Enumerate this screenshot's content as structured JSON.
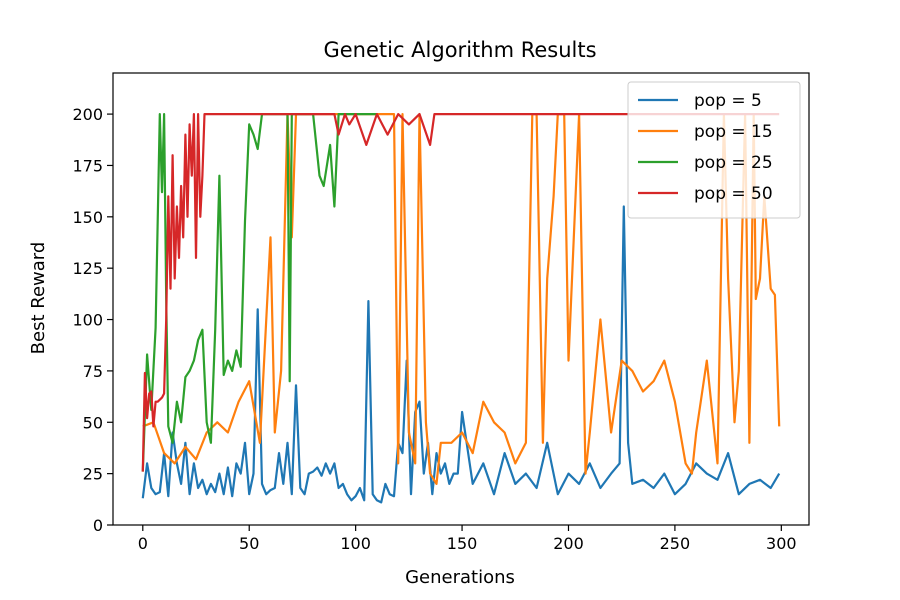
{
  "chart_data": {
    "type": "line",
    "title": "Genetic Algorithm Results",
    "xlabel": "Generations",
    "ylabel": "Best Reward",
    "xlim": [
      -14,
      313
    ],
    "ylim": [
      0,
      220
    ],
    "xticks": [
      0,
      50,
      100,
      150,
      200,
      250,
      300
    ],
    "yticks": [
      0,
      25,
      50,
      75,
      100,
      125,
      150,
      175,
      200
    ],
    "grid": false,
    "legend_position": "top-right",
    "series": [
      {
        "name": "pop = 5",
        "color": "#1f77b4",
        "x": [
          0,
          2,
          4,
          6,
          8,
          10,
          12,
          14,
          16,
          18,
          20,
          22,
          24,
          26,
          28,
          30,
          32,
          34,
          36,
          38,
          40,
          42,
          44,
          46,
          48,
          50,
          52,
          54,
          56,
          58,
          60,
          62,
          64,
          66,
          68,
          70,
          72,
          74,
          76,
          78,
          80,
          82,
          84,
          86,
          88,
          90,
          92,
          94,
          96,
          98,
          100,
          102,
          104,
          106,
          108,
          110,
          112,
          114,
          116,
          118,
          120,
          122,
          124,
          126,
          128,
          130,
          132,
          134,
          136,
          138,
          140,
          142,
          144,
          146,
          148,
          150,
          155,
          160,
          165,
          170,
          175,
          180,
          185,
          190,
          195,
          200,
          205,
          210,
          215,
          220,
          224,
          226,
          228,
          230,
          235,
          240,
          245,
          250,
          255,
          260,
          265,
          270,
          275,
          280,
          285,
          290,
          295,
          299
        ],
        "y": [
          13,
          30,
          18,
          15,
          16,
          35,
          14,
          45,
          30,
          20,
          40,
          15,
          30,
          18,
          22,
          15,
          20,
          16,
          25,
          15,
          28,
          14,
          30,
          25,
          40,
          15,
          25,
          105,
          20,
          15,
          17,
          18,
          35,
          20,
          40,
          15,
          68,
          18,
          15,
          25,
          26,
          28,
          24,
          30,
          25,
          30,
          18,
          20,
          15,
          12,
          14,
          18,
          12,
          109,
          15,
          12,
          11,
          20,
          15,
          14,
          40,
          35,
          80,
          15,
          55,
          60,
          25,
          40,
          15,
          35,
          25,
          30,
          20,
          25,
          25,
          55,
          20,
          30,
          15,
          35,
          20,
          25,
          18,
          40,
          15,
          25,
          20,
          30,
          18,
          25,
          30,
          155,
          40,
          20,
          22,
          18,
          25,
          15,
          20,
          30,
          25,
          22,
          35,
          15,
          20,
          22,
          18,
          25
        ]
      },
      {
        "name": "pop = 15",
        "color": "#ff7f0e",
        "x": [
          0,
          5,
          10,
          15,
          20,
          25,
          30,
          35,
          40,
          45,
          50,
          55,
          60,
          62,
          65,
          68,
          70,
          72,
          75,
          80,
          85,
          90,
          95,
          100,
          105,
          110,
          115,
          118,
          120,
          122,
          125,
          128,
          130,
          133,
          135,
          138,
          140,
          145,
          150,
          155,
          160,
          165,
          170,
          175,
          180,
          183,
          185,
          188,
          190,
          193,
          195,
          198,
          200,
          205,
          208,
          210,
          215,
          220,
          225,
          230,
          235,
          240,
          245,
          250,
          255,
          258,
          260,
          265,
          270,
          273,
          275,
          278,
          280,
          283,
          285,
          287,
          288,
          290,
          292,
          295,
          297,
          299
        ],
        "y": [
          48,
          50,
          35,
          30,
          38,
          32,
          45,
          50,
          45,
          60,
          70,
          40,
          140,
          45,
          75,
          200,
          140,
          200,
          200,
          200,
          200,
          200,
          200,
          200,
          200,
          200,
          200,
          200,
          30,
          200,
          45,
          30,
          200,
          50,
          25,
          20,
          40,
          40,
          45,
          35,
          60,
          50,
          45,
          30,
          40,
          200,
          200,
          40,
          120,
          160,
          200,
          200,
          80,
          200,
          25,
          45,
          100,
          45,
          80,
          75,
          65,
          70,
          80,
          60,
          30,
          25,
          45,
          80,
          30,
          200,
          120,
          50,
          75,
          200,
          40,
          200,
          110,
          120,
          160,
          115,
          112,
          48
        ]
      },
      {
        "name": "pop = 25",
        "color": "#2ca02c",
        "x": [
          0,
          2,
          4,
          6,
          8,
          9,
          10,
          11,
          12,
          14,
          16,
          18,
          20,
          22,
          24,
          26,
          28,
          30,
          32,
          34,
          36,
          38,
          40,
          42,
          44,
          46,
          48,
          50,
          52,
          54,
          56,
          58,
          60,
          62,
          64,
          66,
          68,
          69,
          70,
          72,
          75,
          80,
          83,
          85,
          88,
          90,
          92,
          95,
          100,
          105,
          110
        ],
        "y": [
          26,
          83,
          56,
          96,
          200,
          162,
          200,
          110,
          48,
          40,
          60,
          50,
          72,
          75,
          80,
          90,
          95,
          50,
          40,
          95,
          170,
          73,
          80,
          75,
          85,
          77,
          148,
          195,
          190,
          183,
          200,
          200,
          200,
          200,
          200,
          200,
          200,
          70,
          200,
          200,
          200,
          200,
          170,
          165,
          185,
          155,
          200,
          200,
          200,
          200,
          200
        ]
      },
      {
        "name": "pop = 50",
        "color": "#d62728",
        "x": [
          0,
          1,
          2,
          3,
          4,
          5,
          6,
          7,
          8,
          9,
          10,
          11,
          12,
          13,
          14,
          15,
          16,
          17,
          18,
          19,
          20,
          21,
          22,
          23,
          24,
          25,
          26,
          27,
          28,
          29,
          30,
          35,
          40,
          45,
          50,
          55,
          60,
          65,
          70,
          80,
          85,
          90,
          92,
          95,
          97,
          100,
          105,
          110,
          115,
          120,
          125,
          130,
          135,
          137,
          140,
          145,
          150,
          200,
          250,
          299
        ],
        "y": [
          26,
          74,
          52,
          64,
          65,
          48,
          60,
          60,
          61,
          62,
          64,
          100,
          160,
          115,
          180,
          120,
          155,
          130,
          165,
          140,
          190,
          150,
          195,
          170,
          200,
          130,
          200,
          150,
          170,
          200,
          200,
          200,
          200,
          200,
          200,
          200,
          200,
          200,
          200,
          200,
          200,
          200,
          190,
          200,
          195,
          200,
          185,
          200,
          190,
          200,
          195,
          200,
          185,
          200,
          200,
          200,
          200,
          200,
          200,
          200
        ]
      }
    ]
  }
}
